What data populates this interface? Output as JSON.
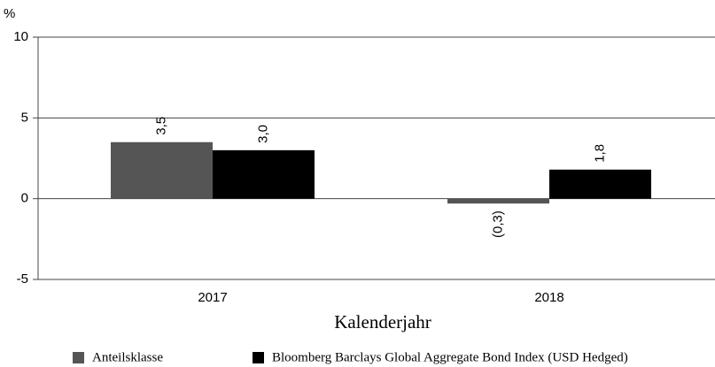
{
  "chart_data": {
    "type": "bar",
    "ylabel": "%",
    "xlabel": "Kalenderjahr",
    "categories": [
      "2017",
      "2018"
    ],
    "series": [
      {
        "name": "Anteilsklasse",
        "color": "#555555",
        "values": [
          3.5,
          -0.3
        ],
        "value_labels": [
          "3,5",
          "(0,3)"
        ]
      },
      {
        "name": "Bloomberg Barclays Global Aggregate Bond Index (USD Hedged)",
        "color": "#000000",
        "values": [
          3.0,
          1.8
        ],
        "value_labels": [
          "3,0",
          "1,8"
        ]
      }
    ],
    "ylim": [
      -5,
      10
    ],
    "yticks": [
      10,
      5,
      0,
      -5
    ],
    "grid": true
  }
}
